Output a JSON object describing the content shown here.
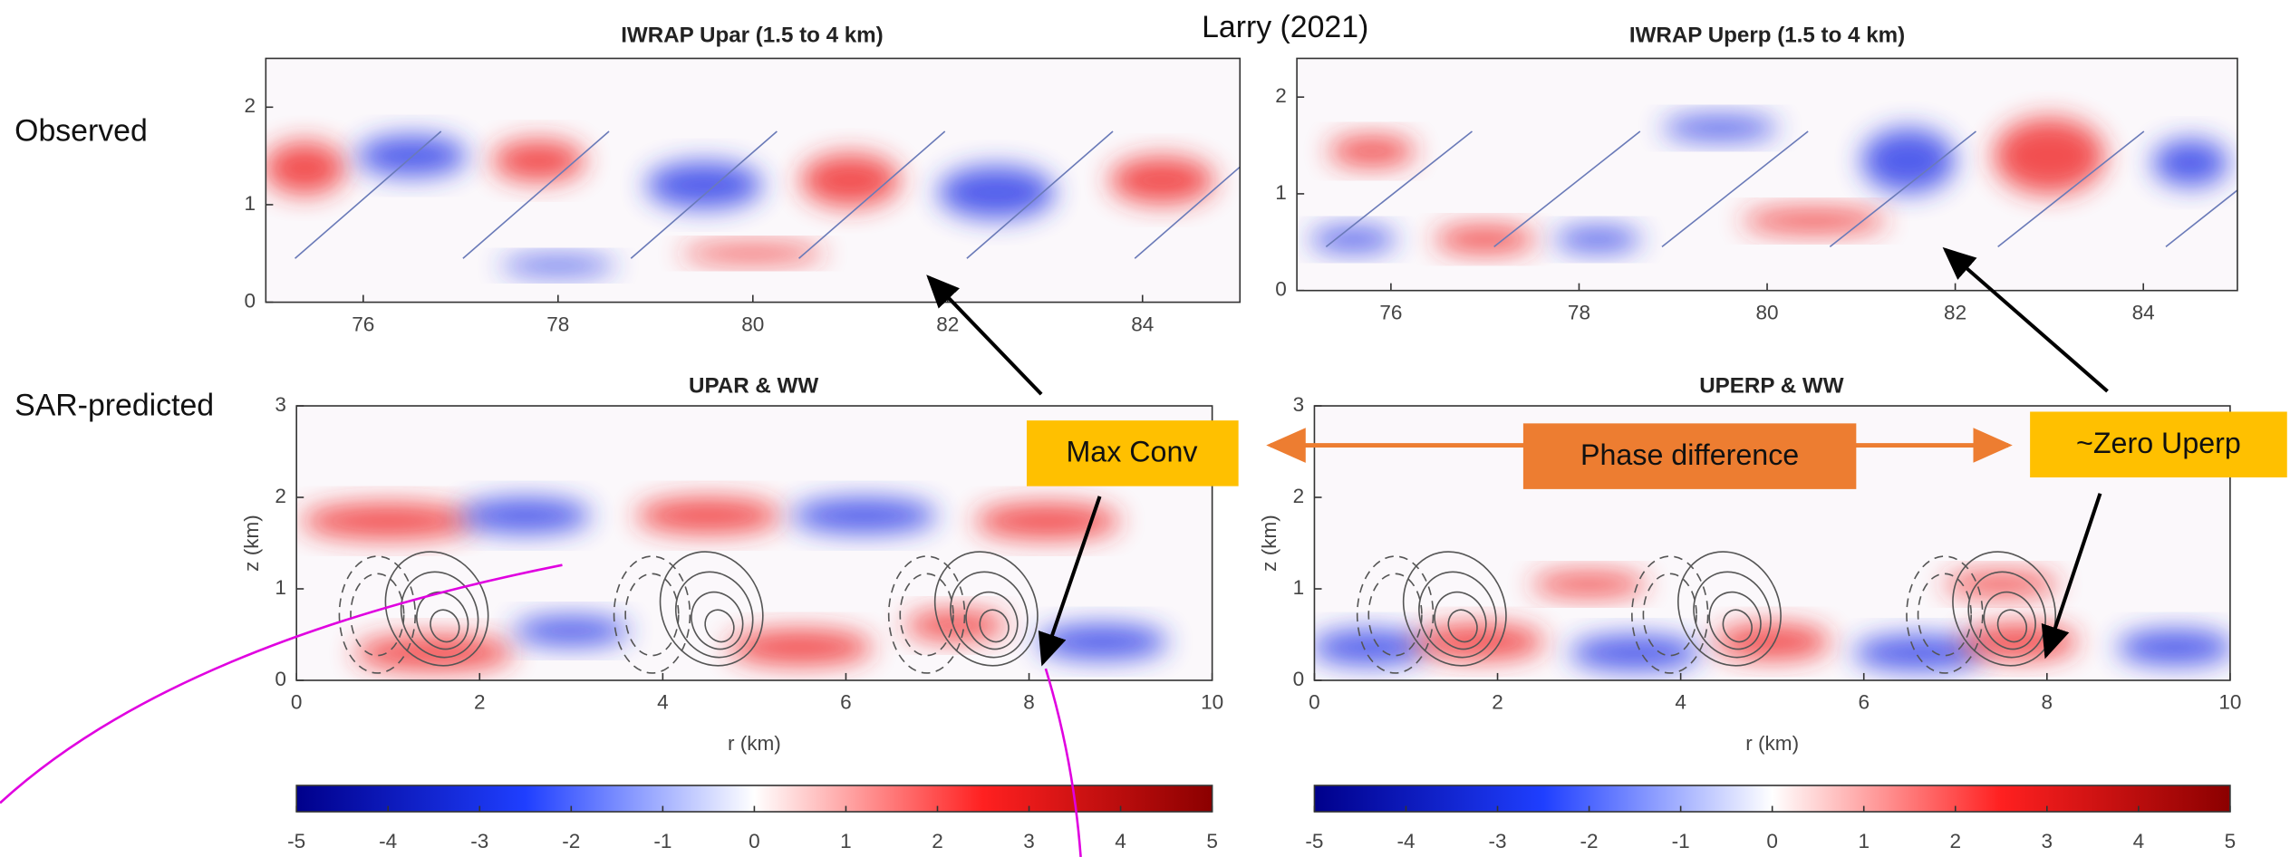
{
  "title": "Larry (2021)",
  "row_labels": [
    "Observed",
    "SAR-predicted"
  ],
  "panels": [
    {
      "title": "IWRAP Upar (1.5 to 4 km)",
      "xlim": [
        75,
        85
      ],
      "ylim": [
        0,
        2.5
      ],
      "xticks": [
        76,
        78,
        80,
        82,
        84
      ],
      "yticks": [
        0,
        1,
        2
      ]
    },
    {
      "title": "IWRAP Uperp (1.5 to 4 km)",
      "xlim": [
        75,
        85
      ],
      "ylim": [
        0,
        2.4
      ],
      "xticks": [
        76,
        78,
        80,
        82,
        84
      ],
      "yticks": [
        0,
        1,
        2
      ]
    },
    {
      "title": "UPAR & WW",
      "xlabel": "r (km)",
      "ylabel": "z (km)",
      "xlim": [
        0,
        10
      ],
      "ylim": [
        0,
        3
      ],
      "xticks": [
        0,
        2,
        4,
        6,
        8,
        10
      ],
      "yticks": [
        0,
        1,
        2,
        3
      ]
    },
    {
      "title": "UPERP & WW",
      "xlabel": "r (km)",
      "ylabel": "z (km)",
      "xlim": [
        0,
        10
      ],
      "ylim": [
        0,
        3
      ],
      "xticks": [
        0,
        2,
        4,
        6,
        8,
        10
      ],
      "yticks": [
        0,
        1,
        2,
        3
      ]
    }
  ],
  "colorbars": [
    {
      "lim": [
        -5,
        5
      ],
      "ticks": [
        -5,
        -4,
        -3,
        -2,
        -1,
        0,
        1,
        2,
        3,
        4,
        5
      ]
    },
    {
      "lim": [
        -5,
        5
      ],
      "ticks": [
        -5,
        -4,
        -3,
        -2,
        -1,
        0,
        1,
        2,
        3,
        4,
        5
      ]
    }
  ],
  "callouts": [
    "Max Conv",
    "Phase difference",
    "~Zero Uperp"
  ]
}
